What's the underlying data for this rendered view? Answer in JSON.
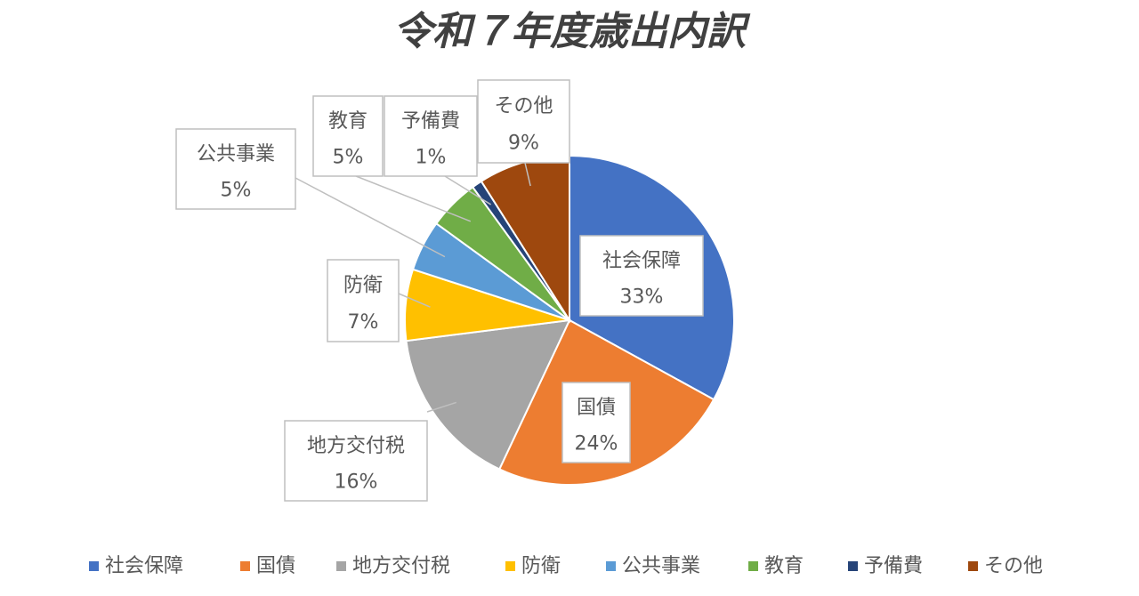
{
  "chart_data": {
    "type": "pie",
    "title": "令和７年度歳出内訳",
    "categories": [
      "社会保障",
      "国債",
      "地方交付税",
      "防衛",
      "公共事業",
      "教育",
      "予備費",
      "その他"
    ],
    "values": [
      33,
      24,
      16,
      7,
      5,
      5,
      1,
      9
    ],
    "value_labels": [
      "33%",
      "24%",
      "16%",
      "7%",
      "5%",
      "5%",
      "1%",
      "9%"
    ],
    "colors": [
      "#4472c4",
      "#ed7d31",
      "#a5a5a5",
      "#ffc000",
      "#5b9bd5",
      "#70ad47",
      "#264478",
      "#9e480e"
    ],
    "legend": "bottom"
  }
}
